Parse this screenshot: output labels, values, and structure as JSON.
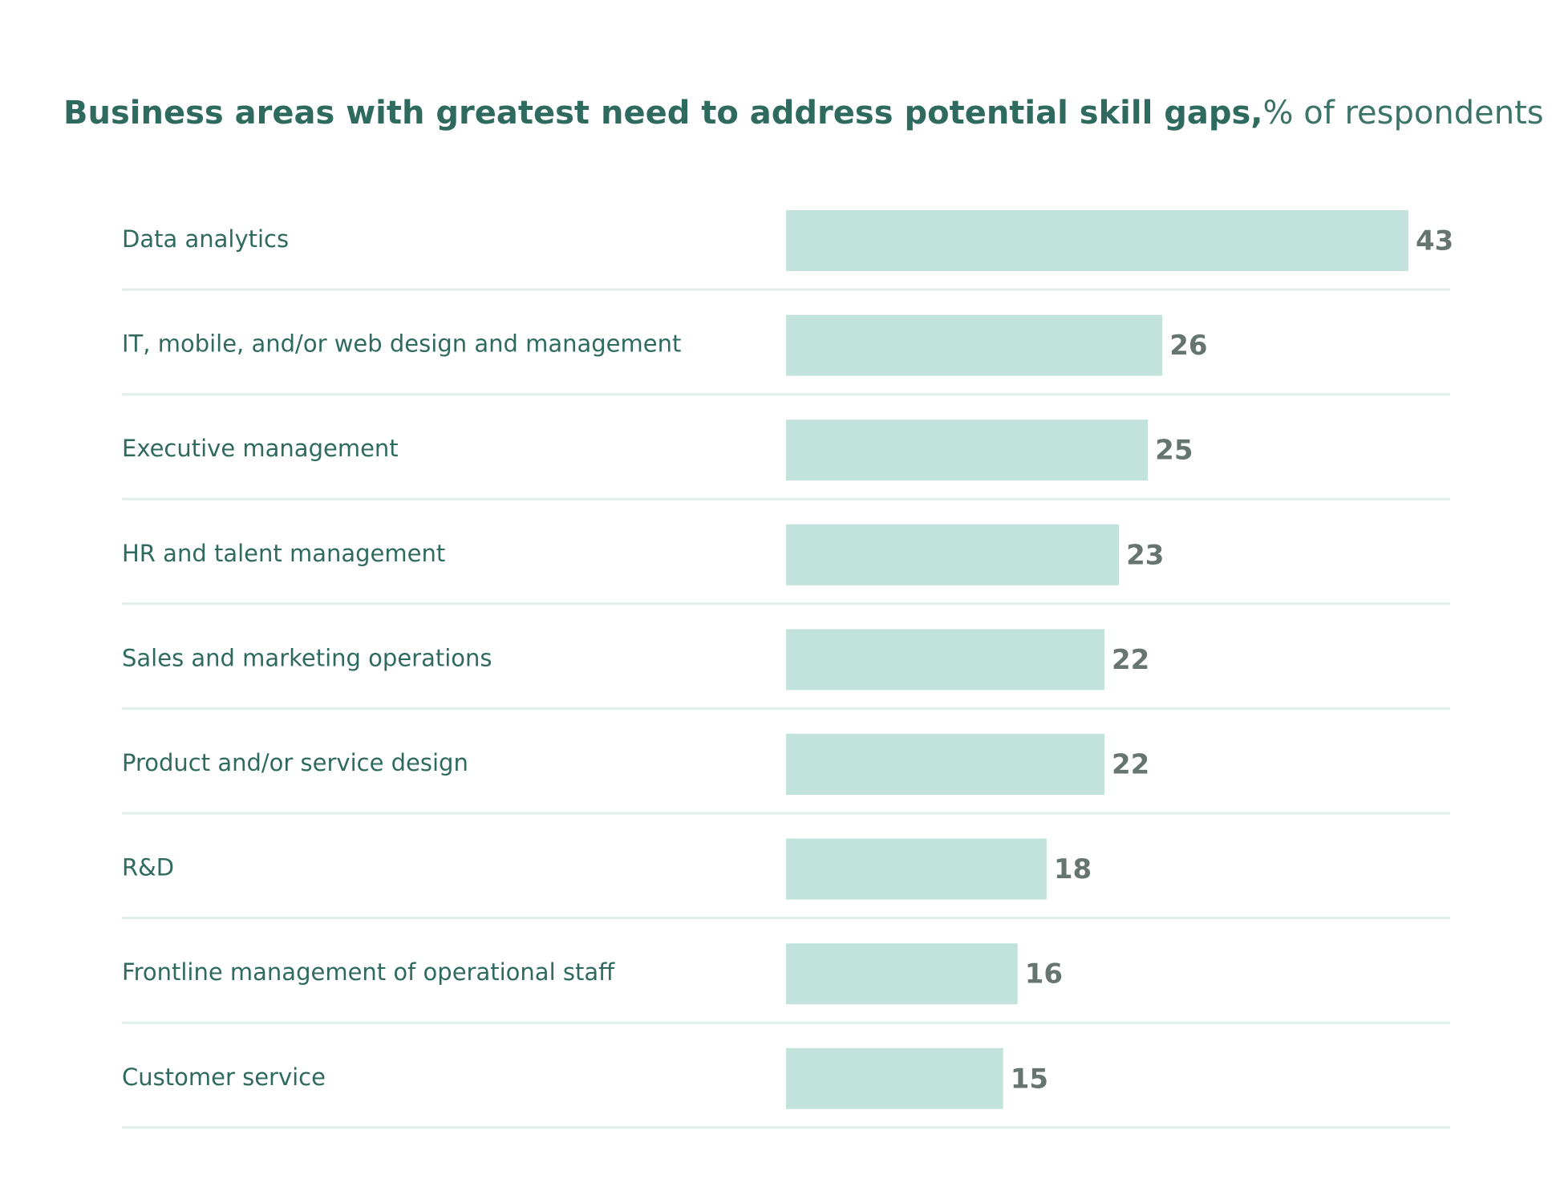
{
  "chart_data": {
    "type": "bar",
    "orientation": "horizontal",
    "title": "Business areas with greatest need to address potential skill gaps,",
    "subtitle": "% of respondents",
    "categories": [
      "Data analytics",
      "IT, mobile, and/or web design and management",
      "Executive management",
      "HR and talent management",
      "Sales and marketing operations",
      "Product and/or service design",
      "R&D",
      "Frontline management of operational staff",
      "Customer service"
    ],
    "values": [
      43,
      26,
      25,
      23,
      22,
      22,
      18,
      16,
      15
    ],
    "xlim": [
      0,
      43
    ],
    "grid": false,
    "legend": "none",
    "colors": {
      "bar": "#c2e2dc",
      "separator": "#dfeeea",
      "title": "#2f6a5e",
      "category_text": "#2f6a5e",
      "value_text": "#66756f"
    }
  }
}
